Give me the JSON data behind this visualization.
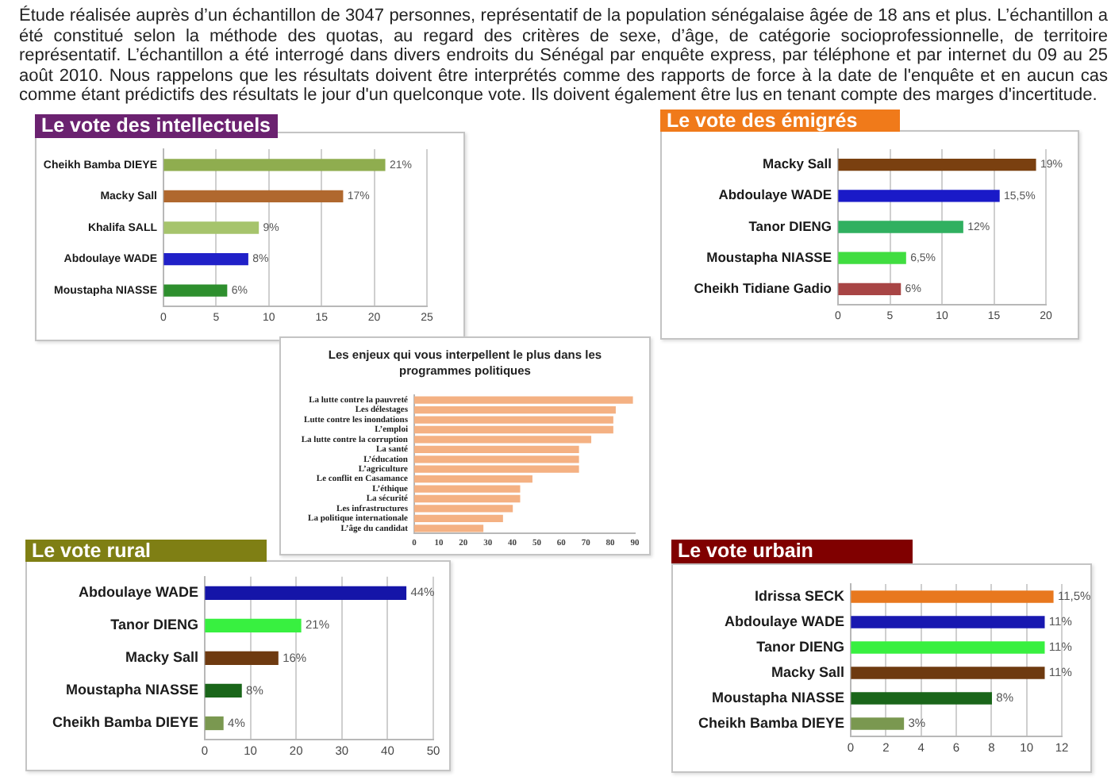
{
  "chart_data": [
    {
      "type": "other",
      "annotations": [
        "Étude réalisée auprès d’un échantillon de 3047 personnes, représentatif de la population sénégalaise âgée de 18 ans et plus. L’échantillon a été constitué selon la méthode des quotas, au regard des critères de sexe, d’âge, de catégorie socioprofessionnelle, de territoire représentatif. L’échantillon a été interrogé dans divers endroits du Sénégal par enquête express, par téléphone et par internet du 09 au 25 août 2010. Nous rappelons que les résultats doivent être interprétés comme des rapports de force à la date de l'enquête et en aucun cas comme étant prédictifs des résultats le jour d'un quelconque vote. Ils doivent également être lus en tenant compte des marges d'incertitude."
      ]
    },
    {
      "type": "bar",
      "orientation": "horizontal",
      "title": "Le vote des intellectuels",
      "categories": [
        "Cheikh Bamba DIEYE",
        "Macky Sall",
        "Khalifa SALL",
        "Abdoulaye WADE",
        "Moustapha NIASSE"
      ],
      "values": [
        21,
        17,
        9,
        8,
        6
      ],
      "colors": [
        "#8fad4f",
        "#b0682e",
        "#a6c46c",
        "#2020c8",
        "#2e8f2e"
      ],
      "value_labels": [
        "21%",
        "17%",
        "9%",
        "8%",
        "6%"
      ],
      "xlim": [
        0,
        25
      ],
      "xticks": [
        0,
        5,
        10,
        15,
        20,
        25
      ],
      "grid": "x"
    },
    {
      "type": "bar",
      "orientation": "horizontal",
      "title": "Le vote des émigrés",
      "categories": [
        "Macky Sall",
        "Abdoulaye WADE",
        "Tanor DIENG",
        "Moustapha NIASSE",
        "Cheikh Tidiane Gadio"
      ],
      "values": [
        19,
        15.5,
        12,
        6.5,
        6
      ],
      "colors": [
        "#7a4010",
        "#1a1ac8",
        "#30b060",
        "#40dd40",
        "#a84545"
      ],
      "value_labels": [
        "19%",
        "15,5%",
        "12%",
        "6,5%",
        "6%"
      ],
      "xlim": [
        0,
        20
      ],
      "xticks": [
        0,
        5,
        10,
        15,
        20
      ],
      "grid": "x"
    },
    {
      "type": "bar",
      "orientation": "horizontal",
      "title": "Les enjeux qui vous interpellent le plus dans les programmes politiques",
      "categories": [
        "La lutte contre la pauvreté",
        "Les délestages",
        "Lutte contre les inondations",
        "L’emploi",
        "La lutte contre la corruption",
        "La santé",
        "L’éducation",
        "L’agriculture",
        "Le conflit en Casamance",
        "L’éthique",
        "La sécurité",
        "Les infrastructures",
        "La politique internationale",
        "L’âge du candidat"
      ],
      "values": [
        89,
        82,
        81,
        81,
        72,
        67,
        67,
        67,
        48,
        43,
        43,
        40,
        36,
        28
      ],
      "color": "#f4b183",
      "xlim": [
        0,
        90
      ],
      "xticks": [
        0,
        10,
        20,
        30,
        40,
        50,
        60,
        70,
        80,
        90
      ]
    },
    {
      "type": "bar",
      "orientation": "horizontal",
      "title": "Le vote rural",
      "categories": [
        "Abdoulaye WADE",
        "Tanor DIENG",
        "Macky Sall",
        "Moustapha NIASSE",
        "Cheikh Bamba DIEYE"
      ],
      "values": [
        44,
        21,
        16,
        8,
        4
      ],
      "colors": [
        "#1515a8",
        "#38f040",
        "#6e3a10",
        "#1a661a",
        "#7a9850"
      ],
      "value_labels": [
        "44%",
        "21%",
        "16%",
        "8%",
        "4%"
      ],
      "xlim": [
        0,
        50
      ],
      "xticks": [
        0,
        10,
        20,
        30,
        40,
        50
      ],
      "grid": "x"
    },
    {
      "type": "bar",
      "orientation": "horizontal",
      "title": "Le vote urbain",
      "categories": [
        "Idrissa SECK",
        "Abdoulaye WADE",
        "Tanor DIENG",
        "Macky Sall",
        "Moustapha NIASSE",
        "Cheikh Bamba DIEYE"
      ],
      "values": [
        11.5,
        11,
        11,
        11,
        8,
        3
      ],
      "colors": [
        "#e8781e",
        "#1818b0",
        "#38f040",
        "#6e3a10",
        "#1a661a",
        "#7a9850"
      ],
      "value_labels": [
        "11,5%",
        "11%",
        "11%",
        "11%",
        "8%",
        "3%"
      ],
      "xlim": [
        0,
        12
      ],
      "xticks": [
        0,
        2,
        4,
        6,
        8,
        10,
        12
      ],
      "grid": "x"
    }
  ]
}
